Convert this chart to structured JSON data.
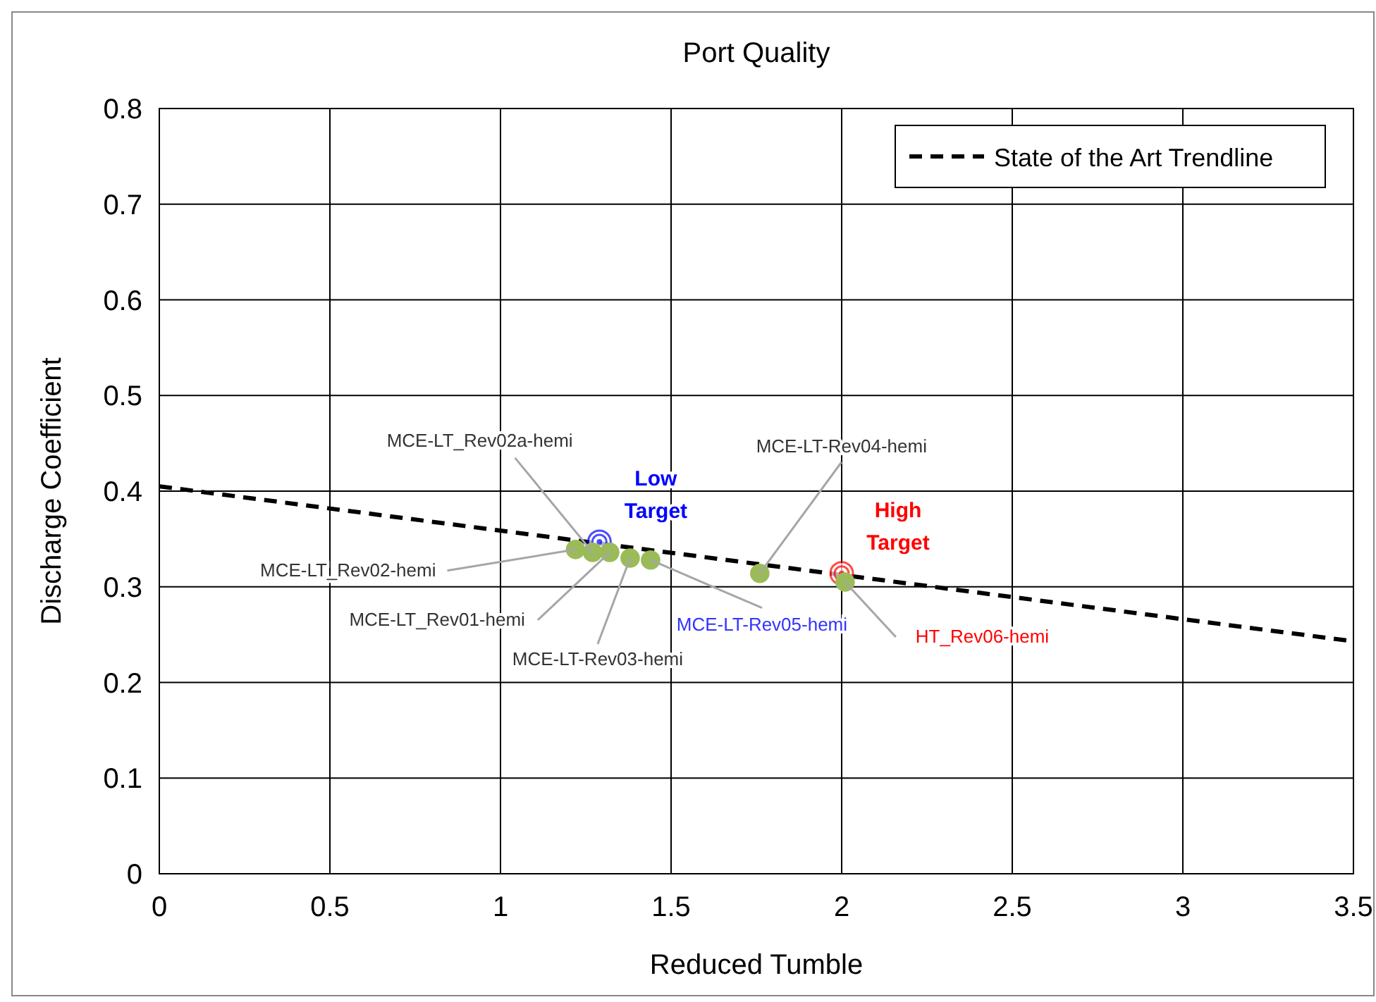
{
  "chart_data": {
    "type": "scatter",
    "title": "Port Quality",
    "xlabel": "Reduced Tumble",
    "ylabel": "Discharge Coefficient",
    "xlim": [
      0,
      3.5
    ],
    "xticks": [
      0,
      0.5,
      1,
      1.5,
      2,
      2.5,
      3,
      3.5
    ],
    "ylim": [
      0,
      0.8
    ],
    "yticks": [
      0,
      0.1,
      0.2,
      0.3,
      0.4,
      0.5,
      0.6,
      0.7,
      0.8
    ],
    "grid": true,
    "legend": "top right",
    "marker": "circle",
    "series": [
      {
        "type": "line",
        "name": "State of the Art Trendline",
        "color": "#000000",
        "line_style": "dashed",
        "marker": "none",
        "x": [
          0,
          3.5
        ],
        "values": [
          0.405,
          0.243
        ]
      },
      {
        "type": "scatter",
        "name": "Low Target",
        "color": "#0000ff",
        "x": [
          1.29
        ],
        "values": [
          0.347
        ]
      },
      {
        "type": "scatter",
        "name": "High Target",
        "color": "#ff0000",
        "x": [
          2.0
        ],
        "values": [
          0.314
        ]
      },
      {
        "type": "scatter",
        "color": "#9bbb59",
        "x": [
          1.22,
          1.27,
          1.32,
          1.38,
          1.44,
          1.76,
          2.01
        ],
        "values": [
          0.339,
          0.336,
          0.336,
          0.33,
          0.328,
          0.314,
          0.305
        ]
      }
    ],
    "annotations": [
      {
        "text": "MCE-LT_Rev02-hemi",
        "x": 1.22,
        "y": 0.339
      },
      {
        "text": "MCE-LT_Rev02a-hemi",
        "x": 1.27,
        "y": 0.336
      },
      {
        "text": "MCE-LT_Rev01-hemi",
        "x": 1.32,
        "y": 0.336
      },
      {
        "text": "MCE-LT-Rev03-hemi",
        "x": 1.38,
        "y": 0.33
      },
      {
        "text": "MCE-LT-Rev05-hemi",
        "x": 1.44,
        "y": 0.328
      },
      {
        "text": "MCE-LT-Rev04-hemi",
        "x": 1.76,
        "y": 0.314
      },
      {
        "text": "HT_Rev06-hemi",
        "x": 2.01,
        "y": 0.305
      }
    ]
  }
}
